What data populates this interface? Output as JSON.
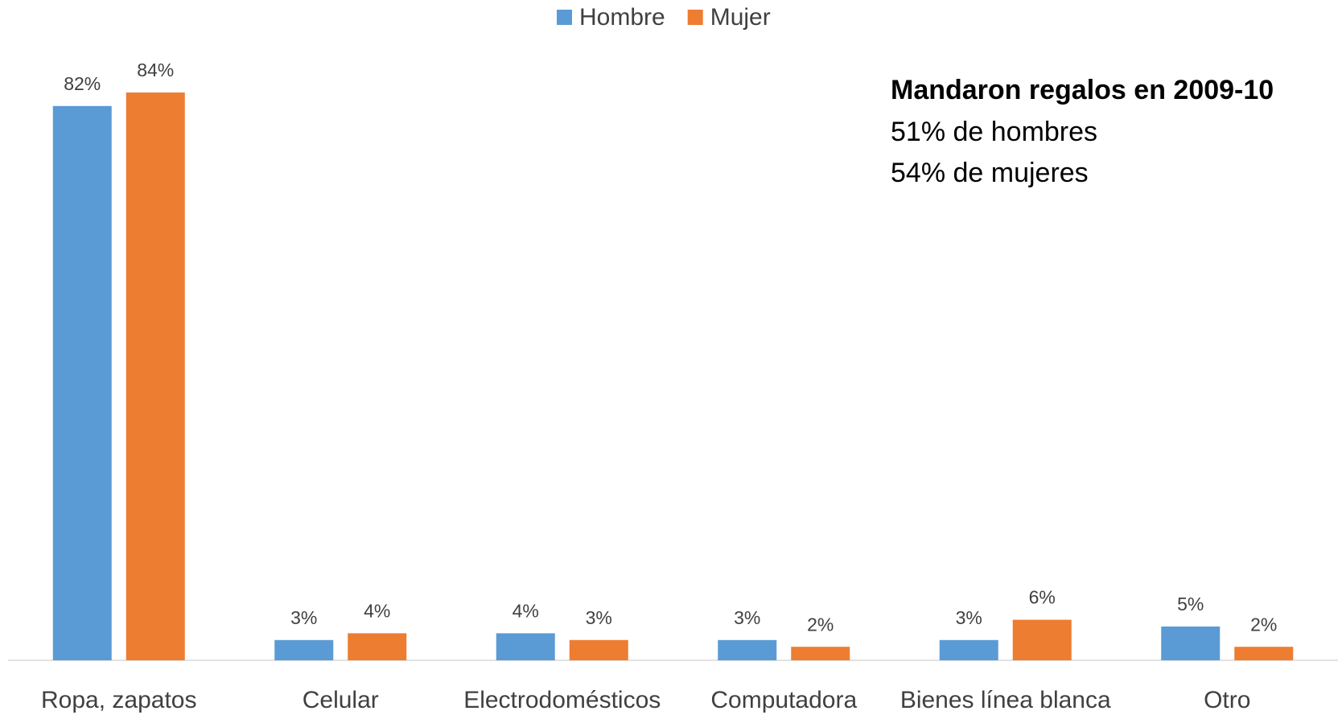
{
  "chart_data": {
    "type": "bar",
    "categories": [
      "Ropa, zapatos",
      "Celular",
      "Electrodomésticos",
      "Computadora",
      "Bienes línea blanca",
      "Otro"
    ],
    "series": [
      {
        "name": "Hombre",
        "color": "#5b9bd5",
        "values": [
          82,
          3,
          4,
          3,
          3,
          5
        ],
        "value_labels": [
          "82%",
          "3%",
          "4%",
          "3%",
          "3%",
          "5%"
        ]
      },
      {
        "name": "Mujer",
        "color": "#ed7d31",
        "values": [
          84,
          4,
          3,
          2,
          6,
          2
        ],
        "value_labels": [
          "84%",
          "4%",
          "3%",
          "2%",
          "6%",
          "2%"
        ]
      }
    ],
    "annotation": {
      "title": "Mandaron regalos en 2009-10",
      "lines": [
        "51% de hombres",
        "54% de mujeres"
      ]
    },
    "legend": "top"
  }
}
